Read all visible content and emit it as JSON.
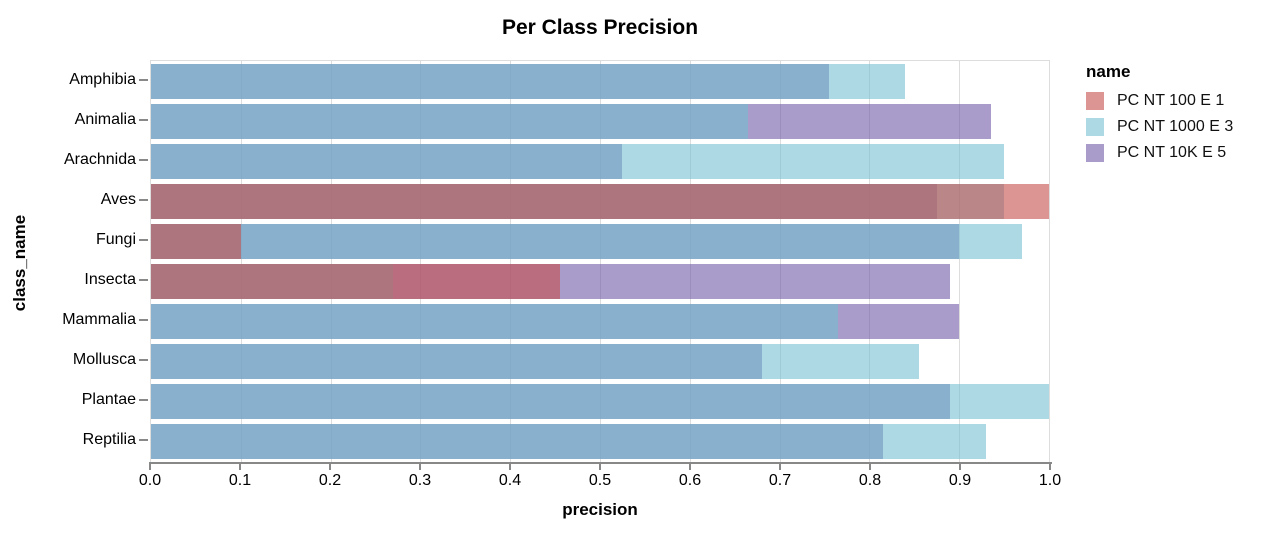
{
  "title": "Per Class Precision",
  "x_axis": {
    "label": "precision",
    "ticks": [
      "0.0",
      "0.1",
      "0.2",
      "0.3",
      "0.4",
      "0.5",
      "0.6",
      "0.7",
      "0.8",
      "0.9",
      "1.0"
    ],
    "domain": [
      0,
      1
    ]
  },
  "y_axis": {
    "label": "class_name"
  },
  "legend": {
    "title": "name",
    "entries": [
      {
        "label": "PC NT 100 E 1",
        "swatch_color": "rgba(196,78,75,0.6)"
      },
      {
        "label": "PC NT 1000 E 3",
        "swatch_color": "rgba(116,192,208,0.6)"
      },
      {
        "label": "PC NT 10K E 5",
        "swatch_color": "rgba(111,90,168,0.6)"
      }
    ]
  },
  "chart_data": {
    "type": "bar",
    "orientation": "horizontal",
    "overlap": "layered-translucent",
    "title": "Per Class Precision",
    "xlabel": "precision",
    "ylabel": "class_name",
    "xlim": [
      0,
      1
    ],
    "grid": true,
    "legend_position": "right",
    "categories": [
      "Amphibia",
      "Animalia",
      "Arachnida",
      "Aves",
      "Fungi",
      "Insecta",
      "Mammalia",
      "Mollusca",
      "Plantae",
      "Reptilia"
    ],
    "series": [
      {
        "name": "PC NT 100 E 1",
        "color": "rgba(196,78,75,0.6)",
        "values": [
          null,
          null,
          null,
          1.0,
          0.1,
          0.455,
          null,
          null,
          null,
          null
        ]
      },
      {
        "name": "PC NT 1000 E 3",
        "color": "rgba(116,192,208,0.6)",
        "values": [
          0.84,
          0.665,
          0.95,
          0.95,
          0.97,
          0.27,
          0.765,
          0.855,
          1.0,
          0.93
        ]
      },
      {
        "name": "PC NT 10K E 5",
        "color": "rgba(111,90,168,0.6)",
        "values": [
          0.755,
          0.935,
          0.525,
          0.875,
          0.9,
          0.89,
          0.9,
          0.68,
          0.89,
          0.815
        ]
      }
    ]
  }
}
